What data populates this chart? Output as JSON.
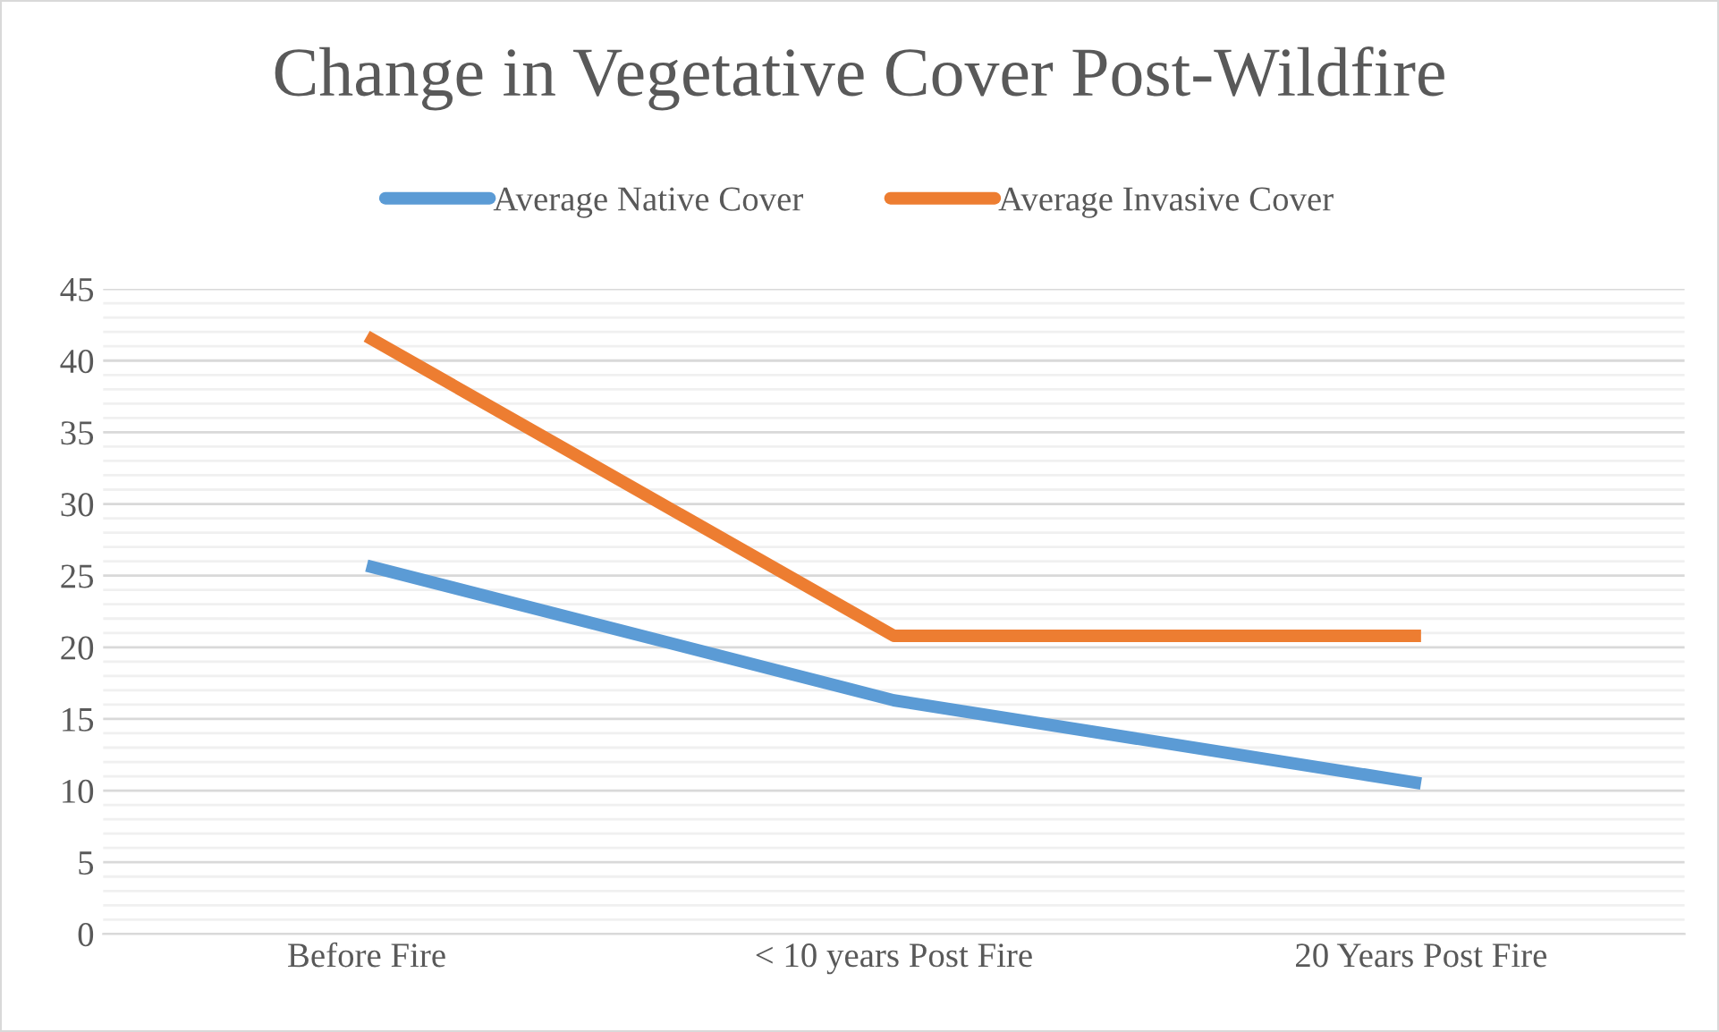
{
  "chart_data": {
    "type": "line",
    "title": "Change in Vegetative Cover Post-Wildfire",
    "categories": [
      "Before Fire",
      "< 10 years Post Fire",
      "20 Years Post Fire"
    ],
    "series": [
      {
        "name": "Average Native Cover",
        "color": "#5b9bd5",
        "values": [
          25.7,
          16.3,
          10.5
        ]
      },
      {
        "name": "Average Invasive Cover",
        "color": "#ed7d31",
        "values": [
          41.7,
          20.8,
          20.8
        ]
      }
    ],
    "ylim": [
      0,
      45
    ],
    "yticks": [
      0,
      {
        "value": 1,
        "label": null
      },
      {
        "value": 2,
        "label": null
      },
      {
        "value": 3,
        "label": null
      },
      {
        "value": 4,
        "label": null
      },
      5,
      {
        "value": 6,
        "label": null
      },
      {
        "value": 7,
        "label": null
      },
      {
        "value": 8,
        "label": null
      },
      {
        "value": 9,
        "label": null
      },
      10,
      {
        "value": 11,
        "label": null
      },
      {
        "value": 12,
        "label": null
      },
      {
        "value": 13,
        "label": null
      },
      {
        "value": 14,
        "label": null
      },
      15,
      {
        "value": 16,
        "label": null
      },
      {
        "value": 17,
        "label": null
      },
      {
        "value": 18,
        "label": null
      },
      {
        "value": 19,
        "label": null
      },
      20,
      {
        "value": 21,
        "label": null
      },
      {
        "value": 22,
        "label": null
      },
      {
        "value": 23,
        "label": null
      },
      {
        "value": 24,
        "label": null
      },
      25,
      {
        "value": 26,
        "label": null
      },
      {
        "value": 27,
        "label": null
      },
      {
        "value": 28,
        "label": null
      },
      {
        "value": 29,
        "label": null
      },
      30,
      {
        "value": 31,
        "label": null
      },
      {
        "value": 32,
        "label": null
      },
      {
        "value": 33,
        "label": null
      },
      {
        "value": 34,
        "label": null
      },
      35,
      {
        "value": 36,
        "label": null
      },
      {
        "value": 37,
        "label": null
      },
      {
        "value": 38,
        "label": null
      },
      {
        "value": 39,
        "label": null
      },
      40,
      {
        "value": 41,
        "label": null
      },
      {
        "value": 42,
        "label": null
      },
      {
        "value": 43,
        "label": null
      },
      {
        "value": 44,
        "label": null
      },
      45
    ],
    "grid": "y",
    "legend": "top",
    "marker": "none",
    "line_style": "solid"
  }
}
